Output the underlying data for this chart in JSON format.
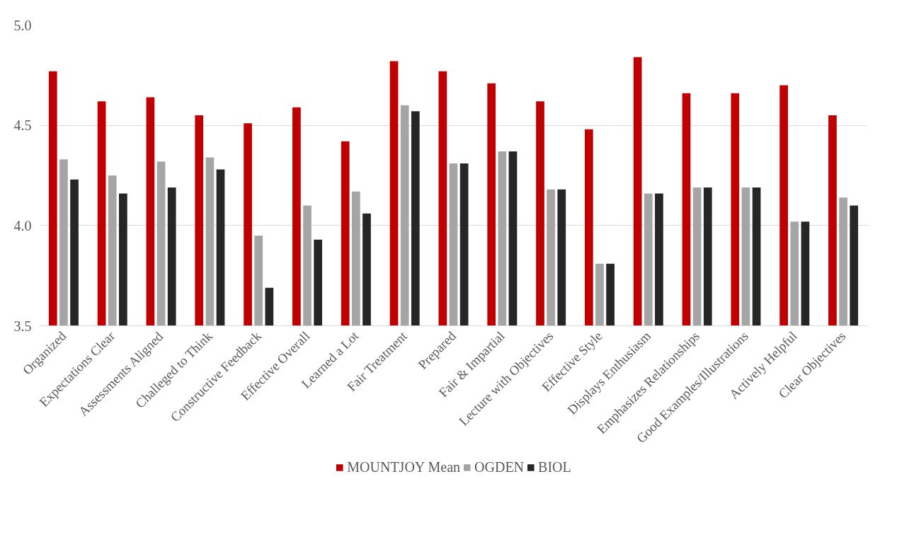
{
  "chart_data": {
    "type": "bar",
    "categories": [
      "Organized",
      "Expectations Clear",
      "Assessments Aligned",
      "Challeged to Think",
      "Constructive Feedback",
      "Effective Overall",
      "Learned a Lot",
      "Fair Treatment",
      "Prepared",
      "Fair & Impartial",
      "Lecture with Objectives",
      "Effective Style",
      "Displays Enthusiasm",
      "Emphasizes Relationships",
      "Good Examples/Illustrations",
      "Actively Helpful",
      "Clear Objectives"
    ],
    "series": [
      {
        "name": "MOUNTJOY Mean",
        "color": "#c00000",
        "values": [
          4.77,
          4.62,
          4.64,
          4.55,
          4.51,
          4.59,
          4.42,
          4.82,
          4.77,
          4.71,
          4.62,
          4.48,
          4.84,
          4.66,
          4.66,
          4.7,
          4.55
        ]
      },
      {
        "name": "OGDEN",
        "color": "#a5a5a5",
        "values": [
          4.33,
          4.25,
          4.32,
          4.34,
          3.95,
          4.1,
          4.17,
          4.6,
          4.31,
          4.37,
          4.18,
          3.81,
          4.16,
          4.19,
          4.19,
          4.02,
          4.14
        ]
      },
      {
        "name": "BIOL",
        "color": "#262626",
        "values": [
          4.23,
          4.16,
          4.19,
          4.28,
          3.69,
          3.93,
          4.06,
          4.57,
          4.31,
          4.37,
          4.18,
          3.81,
          4.16,
          4.19,
          4.19,
          4.02,
          4.1
        ]
      }
    ],
    "ylim": [
      3.5,
      5.0
    ],
    "yticks": [
      {
        "value": 3.5,
        "label": "3.5"
      },
      {
        "value": 4.0,
        "label": "4.0"
      },
      {
        "value": 4.5,
        "label": "4.5"
      },
      {
        "value": 5.0,
        "label": "5.0"
      }
    ],
    "grid": "y",
    "legend": "bottom"
  }
}
